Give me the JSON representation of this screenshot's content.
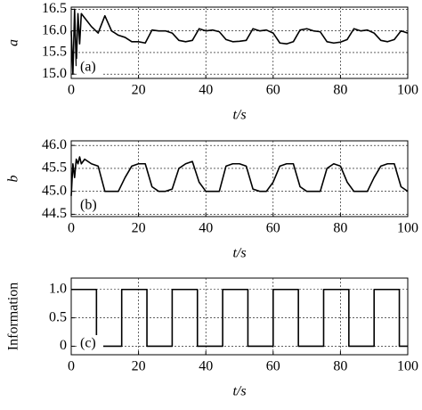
{
  "chart_data": [
    {
      "type": "line",
      "ylabel": "a",
      "xlabel": "t/s",
      "annotation": "(a)",
      "color": "#000000",
      "grid": true,
      "xlim": [
        0,
        100
      ],
      "xticks": [
        0,
        20,
        40,
        60,
        80,
        100
      ],
      "ylim": [
        14.9,
        16.55
      ],
      "yticks": [
        {
          "value": 15,
          "label": "15.0"
        },
        15.5,
        {
          "value": 16,
          "label": "16.0"
        },
        16.5
      ],
      "x": [
        0,
        0.5,
        1,
        1.5,
        2,
        2.5,
        3,
        4,
        6,
        8,
        10,
        12,
        14,
        16,
        18,
        20,
        22,
        24,
        26,
        28,
        30,
        32,
        34,
        36,
        38,
        40,
        42,
        44,
        46,
        48,
        50,
        52,
        54,
        56,
        58,
        60,
        62,
        64,
        66,
        68,
        70,
        72,
        74,
        76,
        78,
        80,
        82,
        84,
        86,
        88,
        90,
        92,
        94,
        96,
        98,
        100
      ],
      "values": [
        16.0,
        15.0,
        16.5,
        15.2,
        16.4,
        15.7,
        16.4,
        16.3,
        16.1,
        15.95,
        16.35,
        16.0,
        15.9,
        15.85,
        15.75,
        15.75,
        15.72,
        16.02,
        16.0,
        16.0,
        15.95,
        15.78,
        15.75,
        15.78,
        16.05,
        16.0,
        16.02,
        15.98,
        15.8,
        15.75,
        15.76,
        15.78,
        16.05,
        16.0,
        16.02,
        15.95,
        15.72,
        15.7,
        15.75,
        16.02,
        16.05,
        16.0,
        15.98,
        15.75,
        15.72,
        15.74,
        15.8,
        16.05,
        16.0,
        16.02,
        15.95,
        15.78,
        15.75,
        15.8,
        16.0,
        15.95
      ]
    },
    {
      "type": "line",
      "ylabel": "b",
      "xlabel": "t/s",
      "annotation": "(b)",
      "color": "#000000",
      "grid": true,
      "xlim": [
        0,
        100
      ],
      "xticks": [
        0,
        20,
        40,
        60,
        80,
        100
      ],
      "ylim": [
        44.45,
        46.1
      ],
      "yticks": [
        44.5,
        {
          "value": 45,
          "label": "45.0"
        },
        45.5,
        {
          "value": 46,
          "label": "46.0"
        }
      ],
      "x": [
        0,
        0.5,
        1,
        1.5,
        2,
        2.5,
        3,
        4,
        6,
        8,
        10,
        12,
        14,
        16,
        18,
        20,
        22,
        24,
        26,
        28,
        30,
        32,
        34,
        36,
        38,
        40,
        42,
        44,
        46,
        48,
        50,
        52,
        54,
        56,
        58,
        60,
        62,
        64,
        66,
        68,
        70,
        72,
        74,
        76,
        78,
        80,
        82,
        84,
        86,
        88,
        90,
        92,
        94,
        96,
        98,
        100
      ],
      "values": [
        44.9,
        45.6,
        45.3,
        45.7,
        45.6,
        45.75,
        45.6,
        45.7,
        45.6,
        45.55,
        45.0,
        45.0,
        45.0,
        45.3,
        45.55,
        45.6,
        45.6,
        45.1,
        45.0,
        45.0,
        45.05,
        45.5,
        45.6,
        45.65,
        45.2,
        45.0,
        45.0,
        45.0,
        45.55,
        45.6,
        45.6,
        45.55,
        45.05,
        45.0,
        45.0,
        45.2,
        45.55,
        45.6,
        45.6,
        45.1,
        45.0,
        45.0,
        45.0,
        45.5,
        45.6,
        45.55,
        45.2,
        45.0,
        45.0,
        45.0,
        45.3,
        45.55,
        45.6,
        45.6,
        45.1,
        45.0
      ]
    },
    {
      "type": "line",
      "ylabel": "Information",
      "xlabel": "t/s",
      "annotation": "(c)",
      "color": "#000000",
      "grid": true,
      "xlim": [
        0,
        100
      ],
      "xticks": [
        0,
        20,
        40,
        60,
        80,
        100
      ],
      "ylim": [
        -0.15,
        1.2
      ],
      "yticks": [
        0,
        0.5,
        {
          "value": 1,
          "label": "1.0"
        }
      ],
      "x": [
        0,
        7.5,
        7.5,
        15,
        15,
        22.5,
        22.5,
        30,
        30,
        37.5,
        37.5,
        45,
        45,
        52.5,
        52.5,
        60,
        60,
        67.5,
        67.5,
        75,
        75,
        82.5,
        82.5,
        90,
        90,
        97.5,
        97.5,
        100
      ],
      "values": [
        1,
        1,
        0,
        0,
        1,
        1,
        0,
        0,
        1,
        1,
        0,
        0,
        1,
        1,
        0,
        0,
        1,
        1,
        0,
        0,
        1,
        1,
        0,
        0,
        1,
        1,
        0,
        0
      ]
    }
  ]
}
